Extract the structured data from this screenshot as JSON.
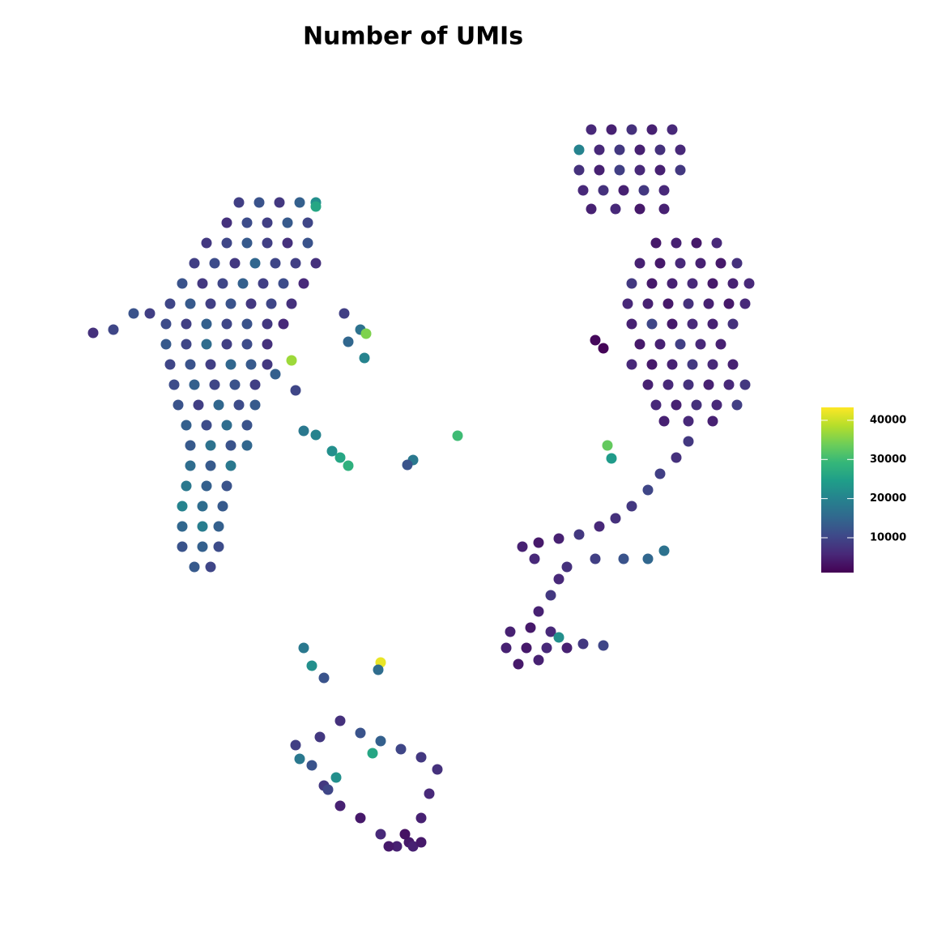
{
  "chart_data": {
    "type": "scatter",
    "title": "Number of UMIs",
    "colormap": "viridis",
    "xlim": [
      10,
      95
    ],
    "ylim": [
      8,
      102
    ],
    "clim": [
      1100,
      43300
    ],
    "cticks": [
      10000,
      20000,
      30000,
      40000
    ],
    "x": [
      29.5,
      32,
      34.5,
      37,
      39,
      28,
      30.5,
      33,
      35.5,
      38,
      25.5,
      28,
      30.5,
      33,
      35.5,
      38,
      24,
      26.5,
      29,
      31.5,
      34,
      36.5,
      39,
      22.5,
      25,
      27.5,
      30,
      32.5,
      35,
      37.5,
      21,
      23.5,
      26,
      28.5,
      31,
      33.5,
      36,
      20.5,
      23,
      25.5,
      28,
      30.5,
      33,
      35,
      20.5,
      23,
      25.5,
      28,
      30.5,
      33,
      21,
      23.5,
      26,
      28.5,
      31,
      33,
      21.5,
      24,
      26.5,
      29,
      31.5,
      22,
      24.5,
      27,
      29.5,
      31.5,
      23,
      25.5,
      28,
      30.5,
      23.5,
      26,
      28.5,
      30.5,
      23.5,
      26,
      28.5,
      23,
      25.5,
      28,
      22.5,
      25,
      27.5,
      22.5,
      25,
      27,
      22.5,
      25,
      27,
      24,
      26,
      39,
      11.5,
      14,
      16.5,
      18.5,
      73,
      75.5,
      78,
      80.5,
      83,
      71.5,
      74,
      76.5,
      79,
      81.5,
      84,
      71.5,
      74,
      76.5,
      79,
      81.5,
      84,
      72,
      74.5,
      77,
      79.5,
      82,
      73,
      76,
      79,
      82,
      81,
      83.5,
      86,
      88.5,
      79,
      81.5,
      84,
      86.5,
      89,
      91,
      78,
      80.5,
      83,
      85.5,
      88,
      90.5,
      92.5,
      77.5,
      80,
      82.5,
      85,
      87.5,
      90,
      92,
      78,
      80.5,
      83,
      85.5,
      88,
      90.5,
      79,
      81.5,
      84,
      86.5,
      89,
      78,
      80.5,
      83,
      85.5,
      88,
      90.5,
      80,
      82.5,
      85,
      87.5,
      90,
      92,
      81,
      83.5,
      86,
      88.5,
      91,
      82,
      85,
      88,
      74.5,
      73.5,
      85,
      83.5,
      81.5,
      80,
      78,
      76,
      74,
      71.5,
      69,
      66.5,
      64.5,
      66,
      70,
      69,
      68,
      66.5,
      63,
      65.5,
      68,
      62.5,
      65,
      67.5,
      70,
      64,
      66.5,
      72,
      74.5,
      73.5,
      77,
      80,
      82,
      75,
      75.5,
      69,
      42,
      41,
      43,
      39,
      37.5,
      51,
      50.3,
      56.5,
      43,
      44.5,
      45,
      42.5,
      45.2,
      36,
      36.5,
      34,
      37.5,
      38.5,
      40,
      47,
      46.7,
      36.5,
      39.5,
      42,
      44.5,
      47,
      49.5,
      52,
      54,
      53,
      52,
      50.5,
      49,
      47,
      44.5,
      42,
      40,
      38.5,
      48,
      51,
      50,
      52,
      40.5,
      41.5,
      46,
      37
    ],
    "y": [
      90.2,
      90.2,
      90.2,
      90.2,
      90.2,
      87.7,
      87.7,
      87.7,
      87.7,
      87.7,
      85.2,
      85.2,
      85.2,
      85.2,
      85.2,
      85.2,
      82.7,
      82.7,
      82.7,
      82.7,
      82.7,
      82.7,
      82.7,
      80.2,
      80.2,
      80.2,
      80.2,
      80.2,
      80.2,
      80.2,
      77.7,
      77.7,
      77.7,
      77.7,
      77.7,
      77.7,
      77.7,
      75.2,
      75.2,
      75.2,
      75.2,
      75.2,
      75.2,
      75.2,
      72.7,
      72.7,
      72.7,
      72.7,
      72.7,
      72.7,
      70.2,
      70.2,
      70.2,
      70.2,
      70.2,
      70.2,
      67.7,
      67.7,
      67.7,
      67.7,
      67.7,
      65.2,
      65.2,
      65.2,
      65.2,
      65.2,
      62.7,
      62.7,
      62.7,
      62.7,
      60.2,
      60.2,
      60.2,
      60.2,
      57.7,
      57.7,
      57.7,
      55.2,
      55.2,
      55.2,
      52.7,
      52.7,
      52.7,
      50.2,
      50.2,
      50.2,
      47.7,
      47.7,
      47.7,
      45.2,
      45.2,
      89.7,
      74.1,
      74.5,
      76.5,
      76.5,
      99.2,
      99.2,
      99.2,
      99.2,
      99.2,
      96.7,
      96.7,
      96.7,
      96.7,
      96.7,
      96.7,
      94.2,
      94.2,
      94.2,
      94.2,
      94.2,
      94.2,
      91.7,
      91.7,
      91.7,
      91.7,
      91.7,
      89.4,
      89.4,
      89.4,
      89.4,
      85.2,
      85.2,
      85.2,
      85.2,
      82.7,
      82.7,
      82.7,
      82.7,
      82.7,
      82.7,
      80.2,
      80.2,
      80.2,
      80.2,
      80.2,
      80.2,
      80.2,
      77.7,
      77.7,
      77.7,
      77.7,
      77.7,
      77.7,
      77.7,
      75.2,
      75.2,
      75.2,
      75.2,
      75.2,
      75.2,
      72.7,
      72.7,
      72.7,
      72.7,
      72.7,
      70.2,
      70.2,
      70.2,
      70.2,
      70.2,
      70.2,
      67.7,
      67.7,
      67.7,
      67.7,
      67.7,
      67.7,
      65.2,
      65.2,
      65.2,
      65.2,
      65.2,
      63.2,
      63.2,
      63.2,
      72.2,
      73.2,
      60.7,
      58.7,
      56.7,
      54.7,
      52.7,
      51.2,
      50.2,
      49.2,
      48.7,
      48.2,
      47.7,
      46.2,
      45.2,
      43.7,
      41.7,
      39.7,
      37.2,
      37.7,
      37.2,
      35.2,
      35.2,
      35.2,
      35.2,
      33.2,
      33.7,
      35.7,
      35.5,
      46.2,
      46.2,
      46.2,
      47.2,
      60.2,
      58.6,
      36.5,
      58.7,
      59.5,
      57.7,
      61.5,
      62,
      58.4,
      57.8,
      61.4,
      73,
      74.5,
      71,
      76.5,
      74,
      70.7,
      67,
      69,
      35.2,
      33,
      31.5,
      33.4,
      32.5,
      23.2,
      24.2,
      26.2,
      24.7,
      23.7,
      22.7,
      21.7,
      20.2,
      17.2,
      14.2,
      11.2,
      10.7,
      12.2,
      14.2,
      15.7,
      18.2,
      20.7,
      10.7,
      10.7,
      12.2,
      11.2,
      17.7,
      19.2,
      22.2,
      21.5
    ],
    "values": [
      9000,
      12000,
      8000,
      14000,
      22000,
      7000,
      11000,
      9000,
      13000,
      10000,
      8000,
      10000,
      13000,
      9000,
      7000,
      12000,
      9000,
      11000,
      8000,
      15000,
      10000,
      9000,
      7000,
      12000,
      8000,
      10000,
      14000,
      9000,
      11000,
      6000,
      10000,
      13000,
      9000,
      12000,
      8000,
      10000,
      7000,
      11000,
      9000,
      14000,
      10000,
      12000,
      8000,
      6000,
      13000,
      10000,
      16000,
      9000,
      11000,
      7000,
      10000,
      12000,
      9000,
      15000,
      13000,
      8000,
      11000,
      14000,
      10000,
      12000,
      9000,
      12000,
      9000,
      15000,
      11000,
      13000,
      14000,
      11000,
      16000,
      12000,
      13000,
      17000,
      12000,
      15000,
      16000,
      13000,
      18000,
      18000,
      14000,
      12000,
      20000,
      16000,
      13000,
      15000,
      19000,
      14000,
      12000,
      14000,
      11000,
      13000,
      10000,
      26000,
      7000,
      10000,
      12000,
      9000,
      6000,
      5000,
      7000,
      5000,
      6000,
      20000,
      6000,
      8000,
      5000,
      7000,
      6000,
      7000,
      5000,
      9000,
      6000,
      5000,
      8000,
      6000,
      7000,
      5000,
      8000,
      6000,
      5000,
      6000,
      4000,
      5000,
      4000,
      5000,
      4000,
      6000,
      5000,
      4000,
      6000,
      5000,
      4000,
      7000,
      8000,
      4000,
      5000,
      6000,
      4000,
      5000,
      6000,
      6000,
      5000,
      4000,
      7000,
      5000,
      4000,
      6000,
      5000,
      10000,
      4000,
      6000,
      5000,
      7000,
      4000,
      5000,
      9000,
      6000,
      5000,
      6000,
      4000,
      5000,
      8000,
      6000,
      5000,
      5000,
      6000,
      7000,
      5000,
      6000,
      8000,
      6000,
      5000,
      7000,
      6000,
      9000,
      5000,
      6000,
      5000,
      1500,
      2000,
      8000,
      7000,
      9000,
      10000,
      8000,
      7000,
      6000,
      8000,
      5000,
      4000,
      5000,
      6000,
      7000,
      6000,
      8000,
      5000,
      5000,
      4000,
      6000,
      5000,
      4000,
      6000,
      5000,
      4000,
      5000,
      8000,
      10000,
      9000,
      12000,
      15000,
      17000,
      33000,
      24000,
      22000,
      26000,
      22000,
      28000,
      20000,
      18000,
      18000,
      12000,
      30000,
      15000,
      17000,
      20000,
      9000,
      35000,
      37000,
      10000,
      14000,
      18000,
      22000,
      12000,
      42000,
      16000,
      9000,
      8000,
      7000,
      12000,
      14000,
      10000,
      8000,
      7000,
      6000,
      5000,
      4000,
      5000,
      6000,
      4000,
      5000,
      8000,
      12000,
      4000,
      5000,
      3000,
      4000,
      10000,
      22000,
      26000,
      18000
    ]
  }
}
